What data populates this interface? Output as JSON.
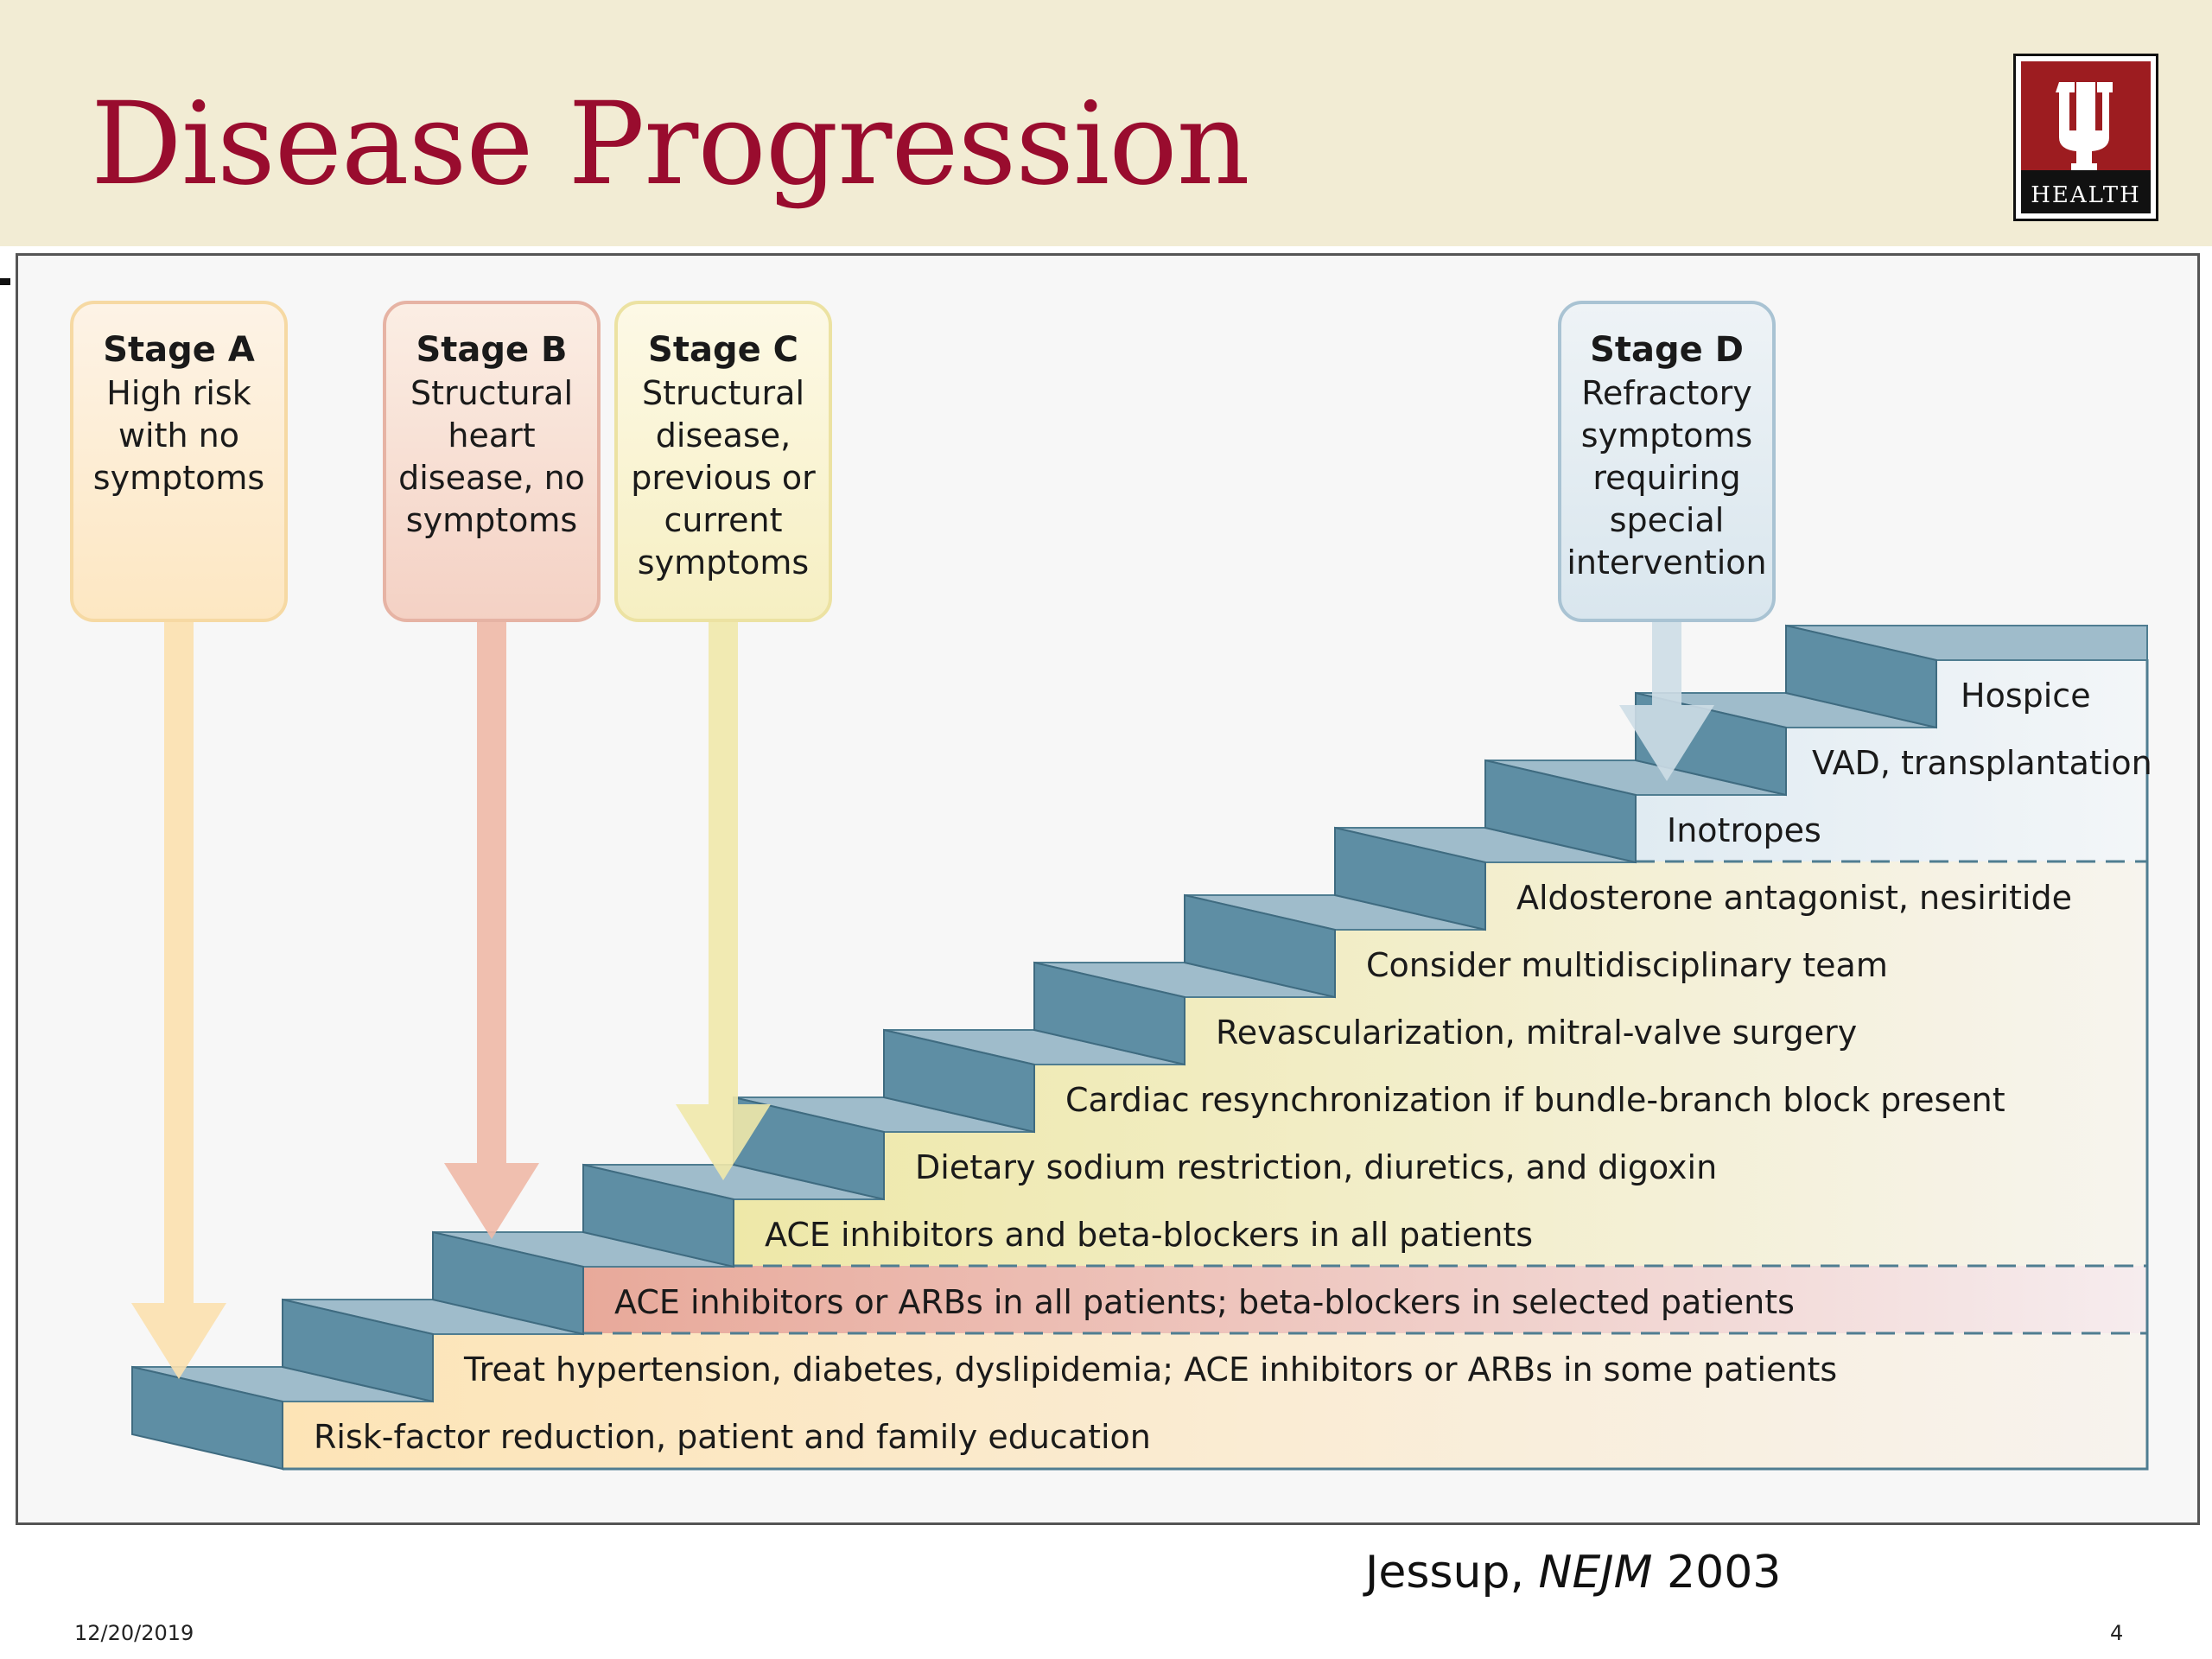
{
  "title": "Disease Progression",
  "logo": {
    "word": "HEALTH"
  },
  "stages": [
    {
      "title": "Stage A",
      "lines": [
        "High risk",
        "with no",
        "symptoms"
      ]
    },
    {
      "title": "Stage B",
      "lines": [
        "Structural",
        "heart",
        "disease, no",
        "symptoms"
      ]
    },
    {
      "title": "Stage C",
      "lines": [
        "Structural",
        "disease,",
        "previous or",
        "current",
        "symptoms"
      ]
    },
    {
      "title": "Stage D",
      "lines": [
        "Refractory",
        "symptoms",
        "requiring",
        "special",
        "intervention"
      ]
    }
  ],
  "steps": [
    "Risk-factor reduction, patient and family education",
    "Treat hypertension, diabetes, dyslipidemia; ACE inhibitors or ARBs in some patients",
    "ACE inhibitors or ARBs in all patients; beta-blockers in selected patients",
    "ACE inhibitors and beta-blockers in all patients",
    "Dietary sodium restriction, diuretics, and digoxin",
    "Cardiac resynchronization if bundle-branch block present",
    "Revascularization, mitral-valve surgery",
    "Consider multidisciplinary team",
    "Aldosterone antagonist, nesiritide",
    "Inotropes",
    "VAD, transplantation",
    "Hospice"
  ],
  "citation": {
    "author": "Jessup, ",
    "journal": "NEJM",
    "year": " 2003"
  },
  "footer": {
    "date": "12/20/2019",
    "page": "4"
  }
}
